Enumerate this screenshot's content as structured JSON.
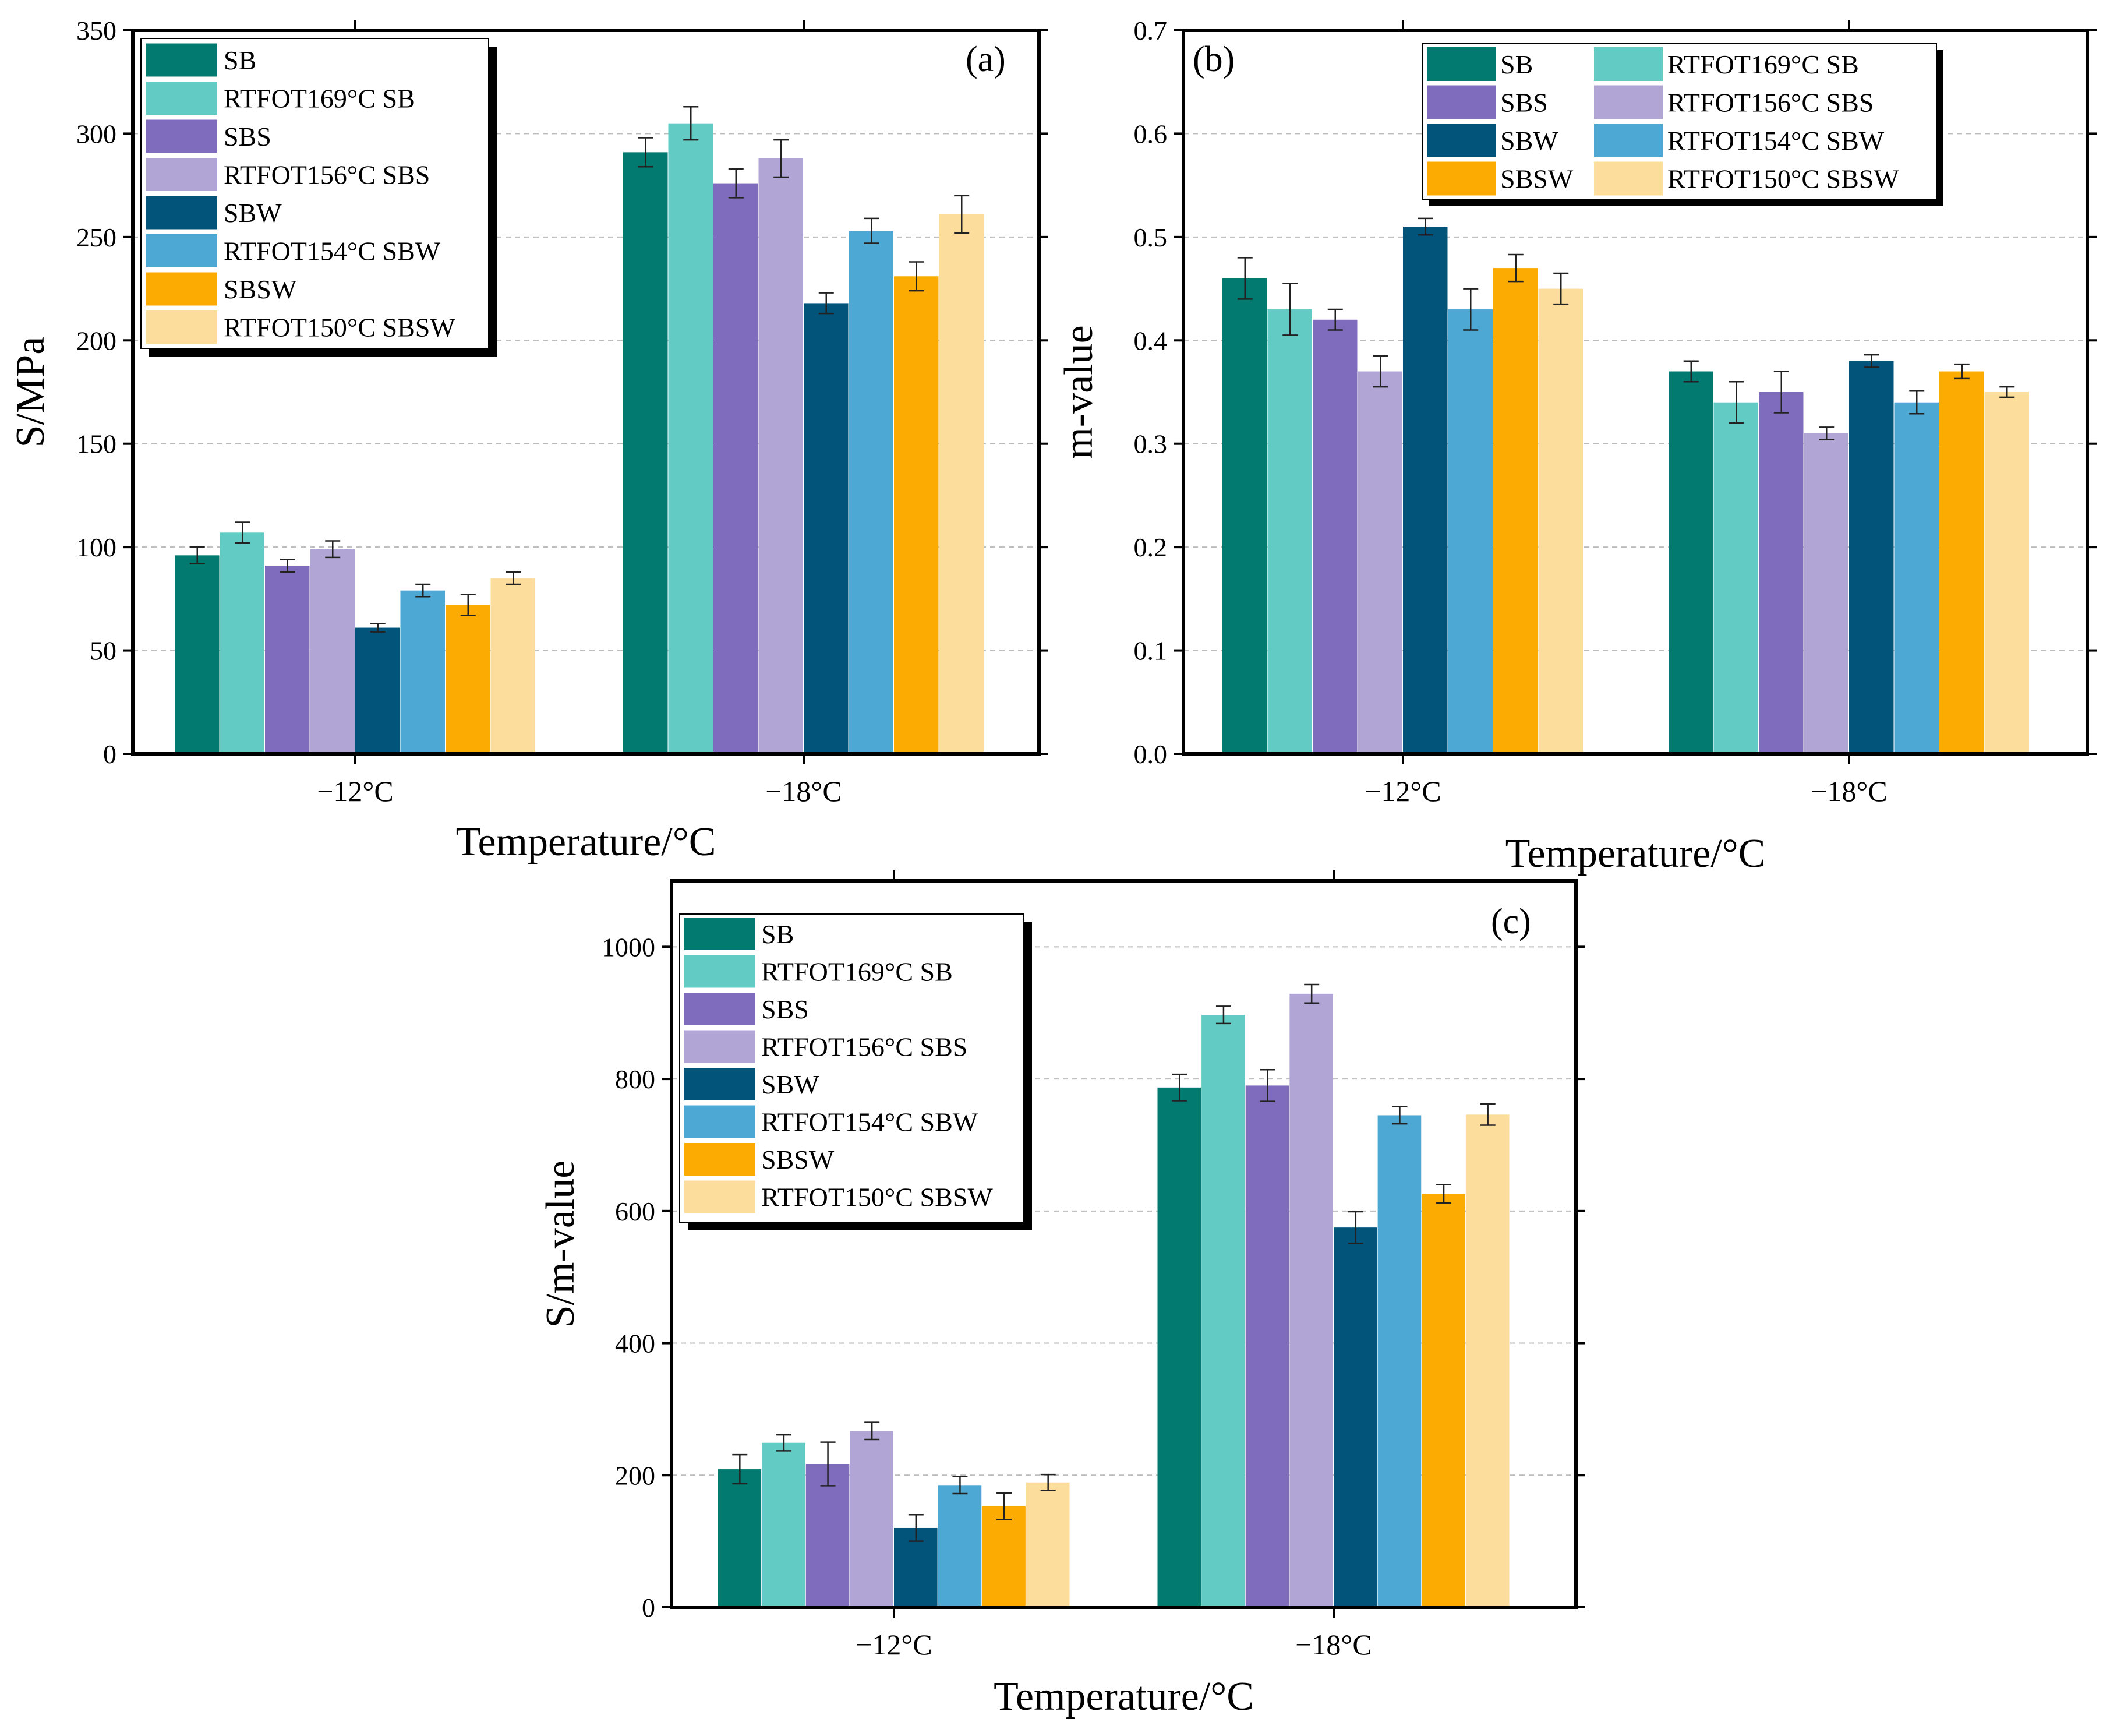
{
  "colors": {
    "SB": "#037a6f",
    "RTFOT169°C SB": "#62cbc3",
    "SBS": "#806cbc",
    "RTFOT156°C SBS": "#b1a5d6",
    "SBW": "#02547b",
    "RTFOT154°C SBW": "#4da8d4",
    "SBSW": "#fcab03",
    "RTFOT150°C SBSW": "#fcdd9c",
    "grid": "#bbbbbb",
    "axis": "#000000"
  },
  "chart_data": [
    {
      "panel": "(a)",
      "type": "bar",
      "categories": [
        "−12°C",
        "−18°C"
      ],
      "xlabel": "Temperature/°C",
      "ylabel": "S/MPa",
      "ylim": [
        0,
        350
      ],
      "yticks": [
        0,
        50,
        100,
        150,
        200,
        250,
        300,
        350
      ],
      "grid": true,
      "legend_position": "top-left",
      "legend_columns": 1,
      "series": [
        {
          "name": "SB",
          "values": [
            96,
            291
          ],
          "errors": [
            4,
            7
          ]
        },
        {
          "name": "RTFOT169°C SB",
          "values": [
            107,
            305
          ],
          "errors": [
            5,
            8
          ]
        },
        {
          "name": "SBS",
          "values": [
            91,
            276
          ],
          "errors": [
            3,
            7
          ]
        },
        {
          "name": "RTFOT156°C SBS",
          "values": [
            99,
            288
          ],
          "errors": [
            4,
            9
          ]
        },
        {
          "name": "SBW",
          "values": [
            61,
            218
          ],
          "errors": [
            2,
            5
          ]
        },
        {
          "name": "RTFOT154°C SBW",
          "values": [
            79,
            253
          ],
          "errors": [
            3,
            6
          ]
        },
        {
          "name": "SBSW",
          "values": [
            72,
            231
          ],
          "errors": [
            5,
            7
          ]
        },
        {
          "name": "RTFOT150°C SBSW",
          "values": [
            85,
            261
          ],
          "errors": [
            3,
            9
          ]
        }
      ]
    },
    {
      "panel": "(b)",
      "type": "bar",
      "categories": [
        "−12°C",
        "−18°C"
      ],
      "xlabel": "Temperature/°C",
      "ylabel": "m-value",
      "ylim": [
        0,
        0.7
      ],
      "yticks": [
        "0.0",
        "0.1",
        "0.2",
        "0.3",
        "0.4",
        "0.5",
        "0.6",
        "0.7"
      ],
      "grid": true,
      "legend_position": "top-center",
      "legend_columns": 2,
      "series": [
        {
          "name": "SB",
          "values": [
            0.46,
            0.37
          ],
          "errors": [
            0.02,
            0.01
          ]
        },
        {
          "name": "RTFOT169°C SB",
          "values": [
            0.43,
            0.34
          ],
          "errors": [
            0.025,
            0.02
          ]
        },
        {
          "name": "SBS",
          "values": [
            0.42,
            0.35
          ],
          "errors": [
            0.01,
            0.02
          ]
        },
        {
          "name": "RTFOT156°C SBS",
          "values": [
            0.37,
            0.31
          ],
          "errors": [
            0.015,
            0.006
          ]
        },
        {
          "name": "SBW",
          "values": [
            0.51,
            0.38
          ],
          "errors": [
            0.008,
            0.006
          ]
        },
        {
          "name": "RTFOT154°C SBW",
          "values": [
            0.43,
            0.34
          ],
          "errors": [
            0.02,
            0.011
          ]
        },
        {
          "name": "SBSW",
          "values": [
            0.47,
            0.37
          ],
          "errors": [
            0.013,
            0.007
          ]
        },
        {
          "name": "RTFOT150°C SBSW",
          "values": [
            0.45,
            0.35
          ],
          "errors": [
            0.015,
            0.005
          ]
        }
      ]
    },
    {
      "panel": "(c)",
      "type": "bar",
      "categories": [
        "−12°C",
        "−18°C"
      ],
      "xlabel": "Temperature/°C",
      "ylabel": "S/m-value",
      "ylim": [
        0,
        1100
      ],
      "yticks": [
        0,
        200,
        400,
        600,
        800,
        1000
      ],
      "grid": true,
      "legend_position": "top-left",
      "legend_columns": 1,
      "series": [
        {
          "name": "SB",
          "values": [
            209,
            787
          ],
          "errors": [
            22,
            20
          ]
        },
        {
          "name": "RTFOT169°C SB",
          "values": [
            249,
            897
          ],
          "errors": [
            12,
            13
          ]
        },
        {
          "name": "SBS",
          "values": [
            217,
            790
          ],
          "errors": [
            33,
            24
          ]
        },
        {
          "name": "RTFOT156°C SBS",
          "values": [
            267,
            929
          ],
          "errors": [
            13,
            14
          ]
        },
        {
          "name": "SBW",
          "values": [
            120,
            575
          ],
          "errors": [
            20,
            24
          ]
        },
        {
          "name": "RTFOT154°C SBW",
          "values": [
            185,
            745
          ],
          "errors": [
            13,
            13
          ]
        },
        {
          "name": "SBSW",
          "values": [
            153,
            626
          ],
          "errors": [
            20,
            14
          ]
        },
        {
          "name": "RTFOT150°C SBSW",
          "values": [
            189,
            746
          ],
          "errors": [
            12,
            16
          ]
        }
      ]
    }
  ]
}
